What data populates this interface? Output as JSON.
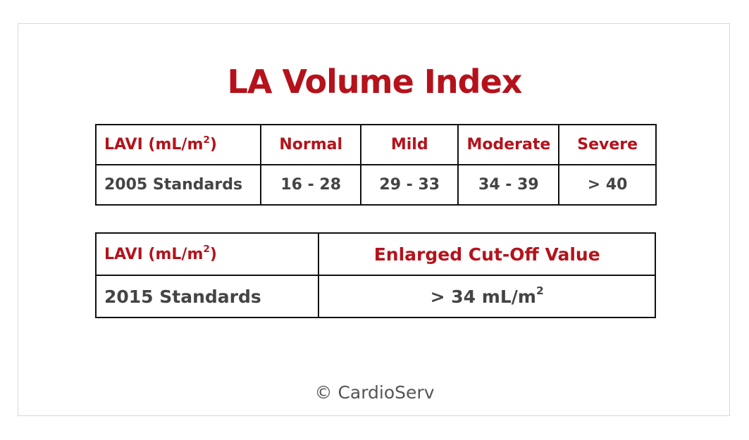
{
  "title": "LA Volume Index",
  "table_2005": {
    "header": {
      "label": "LAVI (mL/m",
      "label_sup": "2",
      "label_close": ")",
      "columns": [
        "Normal",
        "Mild",
        "Moderate",
        "Severe"
      ]
    },
    "row": {
      "label": "2005 Standards",
      "values": [
        "16 - 28",
        "29 - 33",
        "34 - 39",
        "> 40"
      ]
    }
  },
  "table_2015": {
    "header": {
      "label": "LAVI (mL/m",
      "label_sup": "2",
      "label_close": ")",
      "column": "Enlarged Cut-Off Value"
    },
    "row": {
      "label": "2015 Standards",
      "value": "> 34 mL/m",
      "value_sup": "2"
    }
  },
  "copyright": "© CardioServ",
  "colors": {
    "accent": "#b5121b",
    "value_text": "#444444",
    "border": "#111111"
  }
}
